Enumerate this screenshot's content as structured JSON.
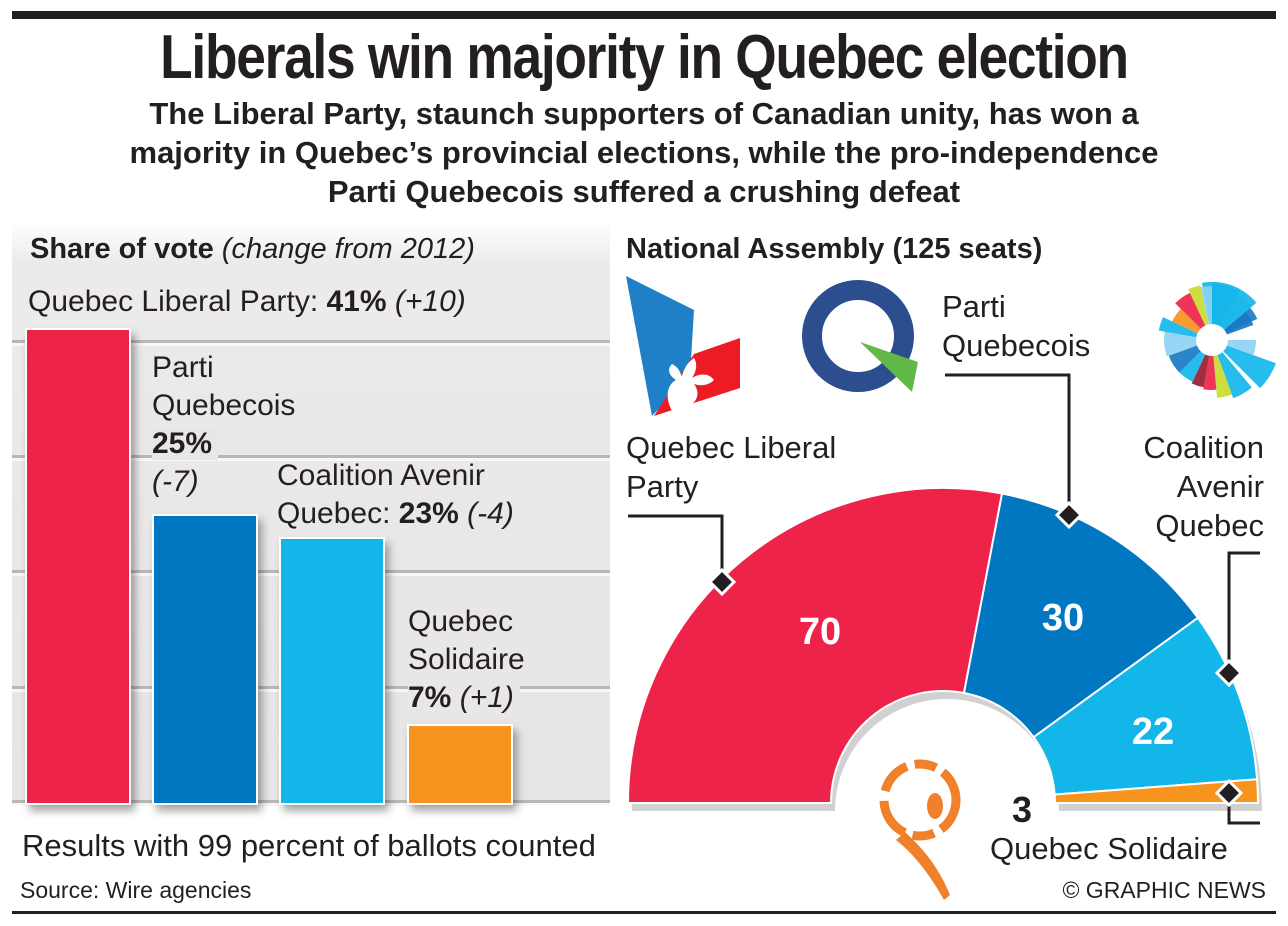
{
  "title": "Liberals win majority in Quebec election",
  "subtitle_lines": [
    "The Liberal Party, staunch supporters of Canadian unity, has won a",
    "majority in Quebec’s provincial elections, while the pro-independence",
    "Parti Quebecois suffered a crushing defeat"
  ],
  "vote_panel": {
    "title_bold": "Share of vote",
    "title_italic": "(change from 2012)"
  },
  "seats_panel": {
    "title": "National Assembly (125 seats)"
  },
  "note": "Results with 99 percent of ballots counted",
  "source": "Source: Wire agencies",
  "credit": "© GRAPHIC NEWS",
  "chart_data": [
    {
      "type": "bar",
      "title": "Share of vote (change from 2012)",
      "xlabel": "",
      "ylabel": "Share of vote (%)",
      "ylim": [
        0,
        41
      ],
      "grid": true,
      "categories": [
        "Quebec Liberal Party",
        "Parti Quebecois",
        "Coalition Avenir Quebec",
        "Quebec Solidaire"
      ],
      "values": [
        41,
        25,
        23,
        7
      ],
      "changes": [
        "+10",
        "-7",
        "-4",
        "+1"
      ],
      "labels": [
        {
          "name_lines": [
            "Quebec Liberal Party:"
          ],
          "value": "41%",
          "change": "(+10)"
        },
        {
          "name_lines": [
            "Parti",
            "Quebecois"
          ],
          "value": "25%",
          "change": "(-7)"
        },
        {
          "name_lines": [
            "Coalition Avenir",
            "Quebec:"
          ],
          "value": "23%",
          "change": "(-4)"
        },
        {
          "name_lines": [
            "Quebec",
            "Solidaire"
          ],
          "value": "7%",
          "change": "(+1)"
        }
      ],
      "colors": [
        "#ed2349",
        "#0077c0",
        "#13b6e9",
        "#f7941d"
      ]
    },
    {
      "type": "pie",
      "subtype": "parliament-half-donut",
      "title": "National Assembly (125 seats)",
      "total": 125,
      "categories": [
        "Quebec Liberal Party",
        "Parti Quebecois",
        "Coalition Avenir Quebec",
        "Quebec Solidaire"
      ],
      "values": [
        70,
        30,
        22,
        3
      ],
      "data_labels": [
        "70",
        "30",
        "22",
        "3"
      ],
      "legend_labels": [
        [
          "Quebec Liberal",
          "Party"
        ],
        [
          "Parti",
          "Quebecois"
        ],
        [
          "Coalition",
          "Avenir",
          "Quebec"
        ],
        [
          "Quebec Solidaire"
        ]
      ],
      "colors": [
        "#ed2349",
        "#0077c0",
        "#13b6e9",
        "#f7941d"
      ],
      "logos": [
        "quebec-liberal-logo",
        "parti-quebecois-logo",
        "coalition-avenir-logo",
        "quebec-solidaire-logo"
      ]
    }
  ]
}
